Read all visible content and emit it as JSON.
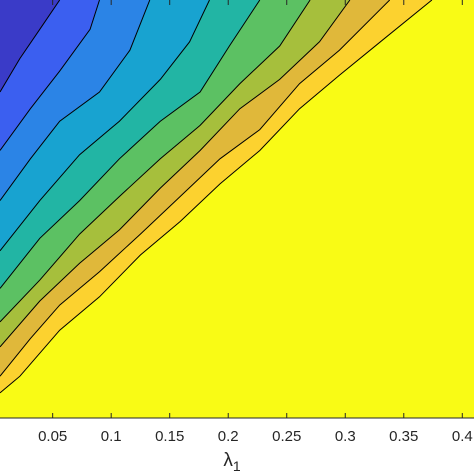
{
  "chart_data": {
    "type": "contour",
    "xlabel": {
      "symbol": "λ",
      "subscript": "1"
    },
    "xlim": [
      0.005,
      0.41
    ],
    "ylim": [
      0,
      1
    ],
    "xticks": [
      0.05,
      0.1,
      0.15,
      0.2,
      0.25,
      0.3,
      0.35,
      0.4
    ],
    "base_color": "#f9fb15",
    "series": [
      {
        "color": "#fcd22f",
        "x": [
          0.005,
          0.022,
          0.056,
          0.09,
          0.125,
          0.159,
          0.193,
          0.227,
          0.261,
          0.295,
          0.33,
          0.374
        ],
        "y": [
          0.06,
          0.1,
          0.21,
          0.29,
          0.39,
          0.47,
          0.56,
          0.64,
          0.74,
          0.82,
          0.9,
          1
        ]
      },
      {
        "color": "#e0b83a",
        "x": [
          0.005,
          0.031,
          0.056,
          0.09,
          0.125,
          0.159,
          0.193,
          0.227,
          0.261,
          0.295,
          0.338
        ],
        "y": [
          0.1,
          0.19,
          0.27,
          0.35,
          0.44,
          0.53,
          0.62,
          0.69,
          0.8,
          0.88,
          1
        ]
      },
      {
        "color": "#a6bf3c",
        "x": [
          0.005,
          0.039,
          0.073,
          0.107,
          0.142,
          0.176,
          0.21,
          0.244,
          0.278,
          0.304
        ],
        "y": [
          0.17,
          0.28,
          0.37,
          0.45,
          0.55,
          0.64,
          0.74,
          0.81,
          0.9,
          1
        ]
      },
      {
        "color": "#5cc163",
        "x": [
          0.005,
          0.039,
          0.073,
          0.107,
          0.142,
          0.176,
          0.21,
          0.244,
          0.27
        ],
        "y": [
          0.23,
          0.33,
          0.44,
          0.53,
          0.62,
          0.7,
          0.8,
          0.89,
          1
        ]
      },
      {
        "color": "#22b5a4",
        "x": [
          0.005,
          0.039,
          0.073,
          0.107,
          0.142,
          0.176,
          0.201,
          0.227
        ],
        "y": [
          0.31,
          0.43,
          0.52,
          0.62,
          0.71,
          0.78,
          0.89,
          1
        ]
      },
      {
        "color": "#18a3d0",
        "x": [
          0.005,
          0.039,
          0.073,
          0.107,
          0.142,
          0.167,
          0.184
        ],
        "y": [
          0.4,
          0.52,
          0.63,
          0.71,
          0.81,
          0.9,
          1
        ]
      },
      {
        "color": "#2b84e6",
        "x": [
          0.005,
          0.031,
          0.056,
          0.09,
          0.116,
          0.133
        ],
        "y": [
          0.52,
          0.62,
          0.71,
          0.78,
          0.88,
          1
        ]
      },
      {
        "color": "#3b5ff0",
        "x": [
          0.005,
          0.031,
          0.056,
          0.082,
          0.09
        ],
        "y": [
          0.64,
          0.74,
          0.83,
          0.93,
          1
        ]
      },
      {
        "color": "#3a3bc8",
        "x": [
          0.005,
          0.022,
          0.039,
          0.056
        ],
        "y": [
          0.78,
          0.86,
          0.93,
          1
        ]
      }
    ]
  }
}
